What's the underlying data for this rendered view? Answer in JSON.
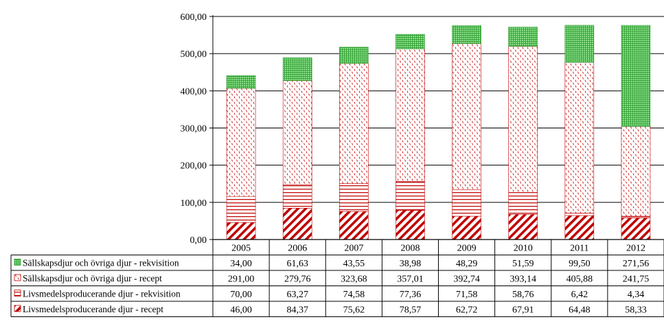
{
  "chart_data": {
    "type": "bar",
    "stacked": true,
    "categories": [
      "2005",
      "2006",
      "2007",
      "2008",
      "2009",
      "2010",
      "2011",
      "2012"
    ],
    "ylim": [
      0,
      600
    ],
    "yticks": [
      "0,00",
      "100,00",
      "200,00",
      "300,00",
      "400,00",
      "500,00",
      "600,00"
    ],
    "grid": true,
    "legend_placement": "data-table-left",
    "series": [
      {
        "name": "Livsmedelsproducerande djur - recept",
        "values": [
          46.0,
          84.37,
          75.62,
          78.57,
          62.72,
          67.91,
          64.48,
          58.33
        ],
        "labels": [
          "46,00",
          "84,37",
          "75,62",
          "78,57",
          "62,72",
          "67,91",
          "64,48",
          "58,33"
        ],
        "color": "#c00000",
        "pattern": "wide-diagonal"
      },
      {
        "name": "Livsmedelsproducerande djur - rekvisition",
        "values": [
          70.0,
          63.27,
          74.58,
          77.36,
          71.58,
          58.76,
          6.42,
          4.34
        ],
        "labels": [
          "70,00",
          "63,27",
          "74,58",
          "77,36",
          "71,58",
          "58,76",
          "6,42",
          "4,34"
        ],
        "color": "#c00000",
        "pattern": "horizontal-lines"
      },
      {
        "name": "Sällskapsdjur och övriga djur - recept",
        "values": [
          291.0,
          279.76,
          323.68,
          357.01,
          392.74,
          393.14,
          405.88,
          241.75
        ],
        "labels": [
          "291,00",
          "279,76",
          "323,68",
          "357,01",
          "392,74",
          "393,14",
          "405,88",
          "241,75"
        ],
        "color": "#c00000",
        "pattern": "small-dashes"
      },
      {
        "name": "Sällskapsdjur och övriga djur - rekvisition",
        "values": [
          34.0,
          61.63,
          43.55,
          38.98,
          48.29,
          51.59,
          99.5,
          271.56
        ],
        "labels": [
          "34,00",
          "61,63",
          "43,55",
          "38,98",
          "48,29",
          "51,59",
          "99,50",
          "271,56"
        ],
        "color": "#33aa33",
        "fill": "#88e088",
        "pattern": "grid"
      }
    ]
  }
}
